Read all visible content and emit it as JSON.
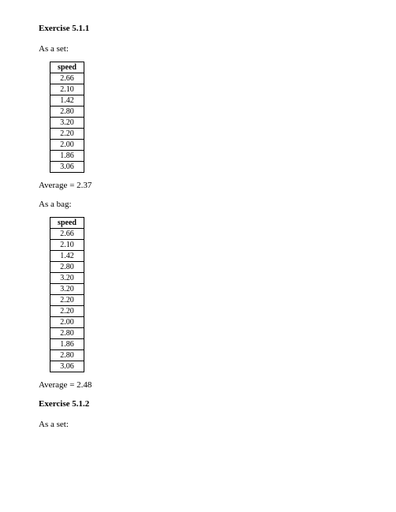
{
  "exercise_1": {
    "title": "Exercise 5.1.1",
    "set_label": "As a set:",
    "set_table": {
      "header": "speed",
      "rows": [
        "2.66",
        "2.10",
        "1.42",
        "2.80",
        "3.20",
        "2.20",
        "2.00",
        "1.86",
        "3.06"
      ]
    },
    "set_average": "Average = 2.37",
    "bag_label": "As a bag:",
    "bag_table": {
      "header": "speed",
      "rows": [
        "2.66",
        "2.10",
        "1.42",
        "2.80",
        "3.20",
        "3.20",
        "2.20",
        "2.20",
        "2.00",
        "2.80",
        "1.86",
        "2.80",
        "3.06"
      ]
    },
    "bag_average": "Average = 2.48"
  },
  "exercise_2": {
    "title": "Exercise 5.1.2",
    "set_label": "As a set:"
  },
  "style": {
    "background": "#ffffff",
    "text_color": "#000000",
    "border_color": "#000000",
    "heading_fontsize": 11,
    "body_fontsize": 11,
    "table_fontsize": 10,
    "font_family": "Times New Roman"
  }
}
